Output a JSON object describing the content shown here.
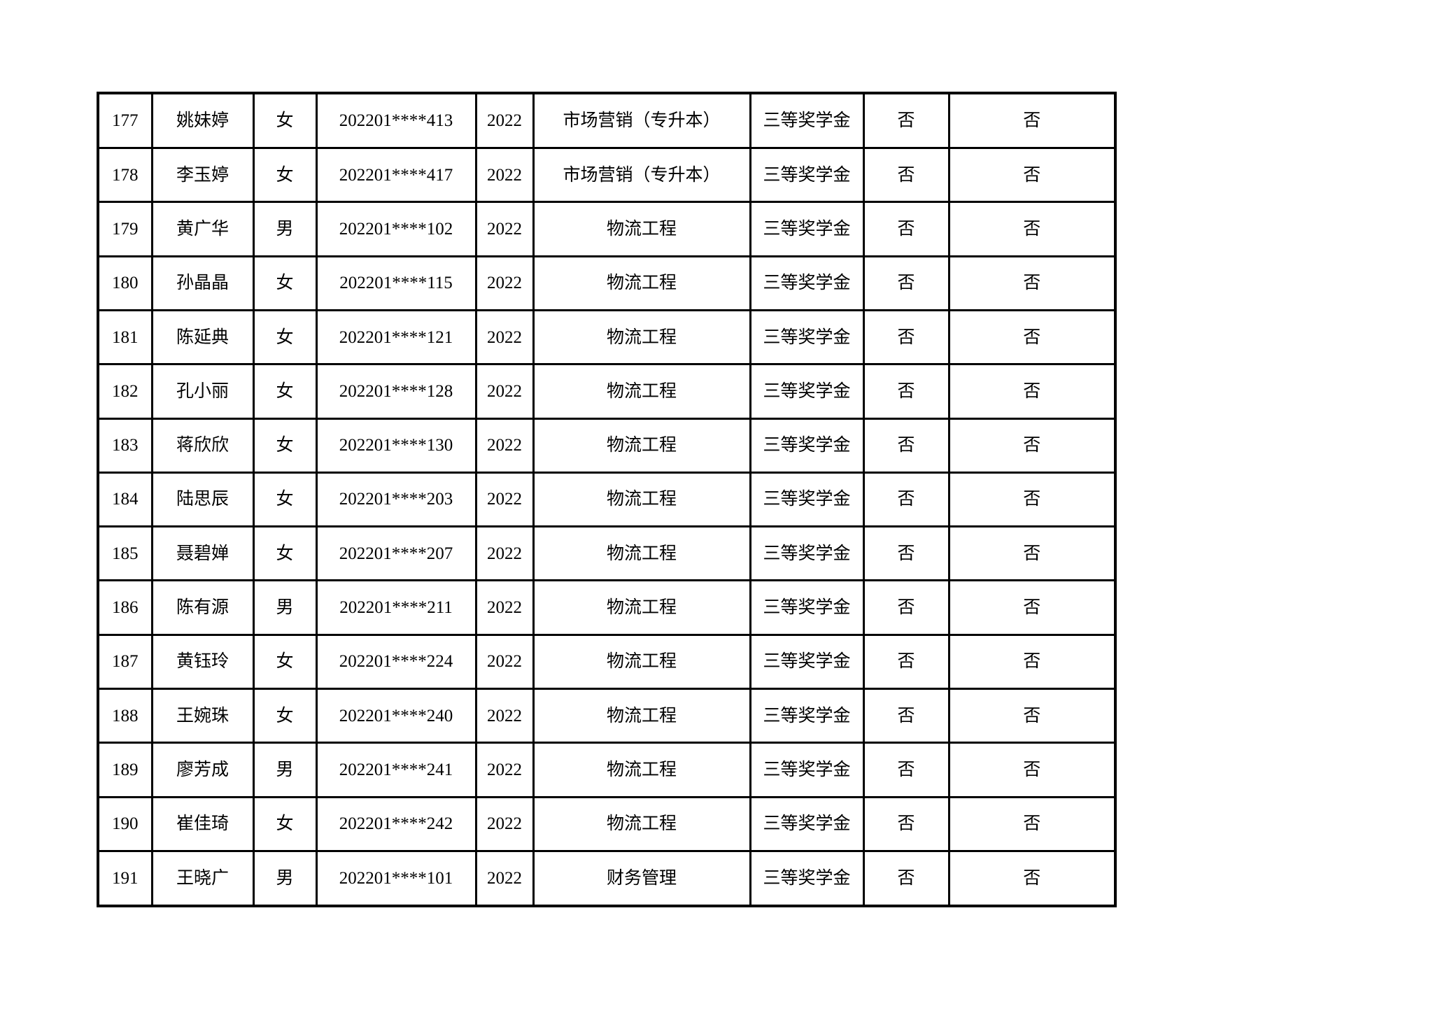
{
  "page": {
    "background_color": "#ffffff",
    "text_color": "#000000",
    "border_color": "#000000"
  },
  "table": {
    "column_names": [
      "row-number",
      "student-name",
      "gender",
      "student-id",
      "enrollment-year",
      "major",
      "scholarship-level",
      "flag-column-1",
      "flag-column-2"
    ],
    "rows": [
      [
        "177",
        "姚妹婷",
        "女",
        "202201****413",
        "2022",
        "市场营销（专升本）",
        "三等奖学金",
        "否",
        "否"
      ],
      [
        "178",
        "李玉婷",
        "女",
        "202201****417",
        "2022",
        "市场营销（专升本）",
        "三等奖学金",
        "否",
        "否"
      ],
      [
        "179",
        "黄广华",
        "男",
        "202201****102",
        "2022",
        "物流工程",
        "三等奖学金",
        "否",
        "否"
      ],
      [
        "180",
        "孙晶晶",
        "女",
        "202201****115",
        "2022",
        "物流工程",
        "三等奖学金",
        "否",
        "否"
      ],
      [
        "181",
        "陈延典",
        "女",
        "202201****121",
        "2022",
        "物流工程",
        "三等奖学金",
        "否",
        "否"
      ],
      [
        "182",
        "孔小丽",
        "女",
        "202201****128",
        "2022",
        "物流工程",
        "三等奖学金",
        "否",
        "否"
      ],
      [
        "183",
        "蒋欣欣",
        "女",
        "202201****130",
        "2022",
        "物流工程",
        "三等奖学金",
        "否",
        "否"
      ],
      [
        "184",
        "陆思辰",
        "女",
        "202201****203",
        "2022",
        "物流工程",
        "三等奖学金",
        "否",
        "否"
      ],
      [
        "185",
        "聂碧婵",
        "女",
        "202201****207",
        "2022",
        "物流工程",
        "三等奖学金",
        "否",
        "否"
      ],
      [
        "186",
        "陈有源",
        "男",
        "202201****211",
        "2022",
        "物流工程",
        "三等奖学金",
        "否",
        "否"
      ],
      [
        "187",
        "黄钰玲",
        "女",
        "202201****224",
        "2022",
        "物流工程",
        "三等奖学金",
        "否",
        "否"
      ],
      [
        "188",
        "王婉珠",
        "女",
        "202201****240",
        "2022",
        "物流工程",
        "三等奖学金",
        "否",
        "否"
      ],
      [
        "189",
        "廖芳成",
        "男",
        "202201****241",
        "2022",
        "物流工程",
        "三等奖学金",
        "否",
        "否"
      ],
      [
        "190",
        "崔佳琦",
        "女",
        "202201****242",
        "2022",
        "物流工程",
        "三等奖学金",
        "否",
        "否"
      ],
      [
        "191",
        "王晓广",
        "男",
        "202201****101",
        "2022",
        "财务管理",
        "三等奖学金",
        "否",
        "否"
      ]
    ]
  }
}
